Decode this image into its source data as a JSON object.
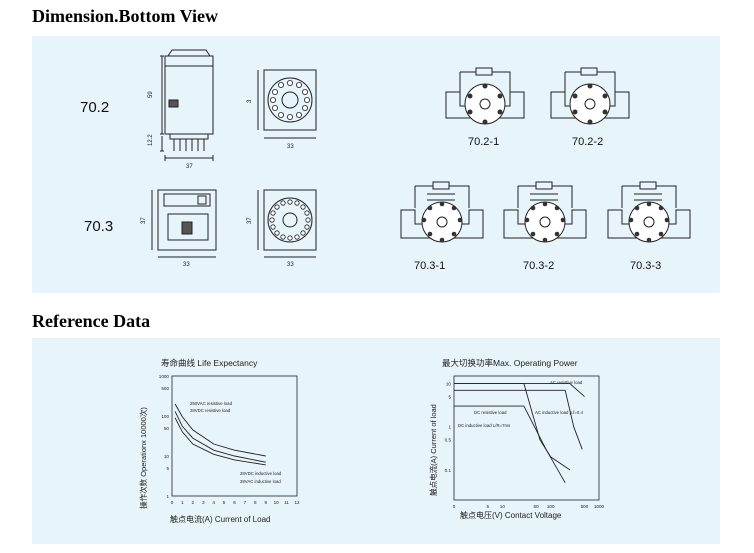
{
  "titles": {
    "dimension": "Dimension.Bottom View",
    "reference": "Reference Data"
  },
  "dimension": {
    "rows": [
      {
        "model": "70.2",
        "dims": {
          "height": "59",
          "pins": "12.2",
          "width": "37",
          "socket_side": "3",
          "socket_width": "33"
        },
        "diagrams": [
          "70.2-1",
          "70.2-2"
        ]
      },
      {
        "model": "70.3",
        "dims": {
          "height": "37",
          "width": "33",
          "socket_side": "37",
          "socket_width": "33"
        },
        "diagrams": [
          "70.3-1",
          "70.3-2",
          "70.3-3"
        ]
      }
    ]
  },
  "reference": {
    "life": {
      "title": "寿命曲线  Life Expectancy",
      "ylabel": "操作次数  Operationx 10000次)",
      "xlabel": "触点电流(A)   Current of Load",
      "yticks": [
        "1000",
        "500",
        "100",
        "50",
        "10",
        "5",
        "1"
      ],
      "xticks": [
        "0",
        "1",
        "2",
        "3",
        "4",
        "5",
        "6",
        "7",
        "8",
        "9",
        "10",
        "11",
        "12"
      ],
      "annotations": [
        "250VAC resistive load",
        "28VDC resistive load",
        "28VDC inductive load",
        "28VAC inductive load"
      ]
    },
    "power": {
      "title": "最大切换功率Max. Operating  Power",
      "ylabel": "触点电流(A) Current of load",
      "xlabel": "触点电压(V) Contact Voltage",
      "yticks": [
        "10",
        "5",
        "1",
        "0.5",
        "0.1"
      ],
      "xticks": [
        "0",
        "5",
        "10",
        "50",
        "100",
        "500",
        "1000"
      ],
      "annotations": [
        "AC resistive load",
        "DC resistive load",
        "AC inductive load p.f=0.4",
        "DC inductive load L/R=7ms"
      ]
    }
  },
  "chart_data": [
    {
      "type": "line",
      "title": "寿命曲线  Life Expectancy",
      "xlabel": "触点电流(A)   Current of Load",
      "ylabel": "操作次数  Operationx 10000次)",
      "y_scale": "log",
      "xlim": [
        0,
        12
      ],
      "ylim": [
        1,
        1000
      ],
      "series": [
        {
          "x": [
            0.3,
            1,
            2,
            4,
            6,
            9
          ],
          "y": [
            200,
            95,
            45,
            20,
            14,
            10
          ]
        },
        {
          "x": [
            0.3,
            1,
            2,
            4,
            6,
            9
          ],
          "y": [
            130,
            55,
            28,
            14,
            10,
            7
          ]
        },
        {
          "x": [
            0.3,
            1,
            2,
            4,
            6,
            9
          ],
          "y": [
            90,
            40,
            20,
            11,
            8,
            6
          ]
        }
      ]
    },
    {
      "type": "line",
      "title": "最大切换功率Max. Operating  Power",
      "xlabel": "触点电压(V) Contact Voltage",
      "ylabel": "触点电流(A) Current of load",
      "x_scale": "log",
      "y_scale": "log",
      "xlim": [
        1,
        1000
      ],
      "ylim": [
        0.02,
        15
      ],
      "series": [
        {
          "name": "AC resistive load",
          "x": [
            1,
            250,
            500
          ],
          "y": [
            10,
            10,
            5
          ]
        },
        {
          "name": "DC resistive load",
          "x": [
            1,
            28,
            60,
            100,
            250
          ],
          "y": [
            10,
            10,
            0.5,
            0.2,
            0.1
          ]
        },
        {
          "name": "AC inductive load p.f=0.4",
          "x": [
            1,
            200,
            300,
            450
          ],
          "y": [
            7,
            7,
            1,
            0.3
          ]
        },
        {
          "name": "DC inductive load L/R=7ms",
          "x": [
            1,
            28,
            80,
            200
          ],
          "y": [
            3,
            3,
            0.3,
            0.05
          ]
        }
      ]
    }
  ]
}
